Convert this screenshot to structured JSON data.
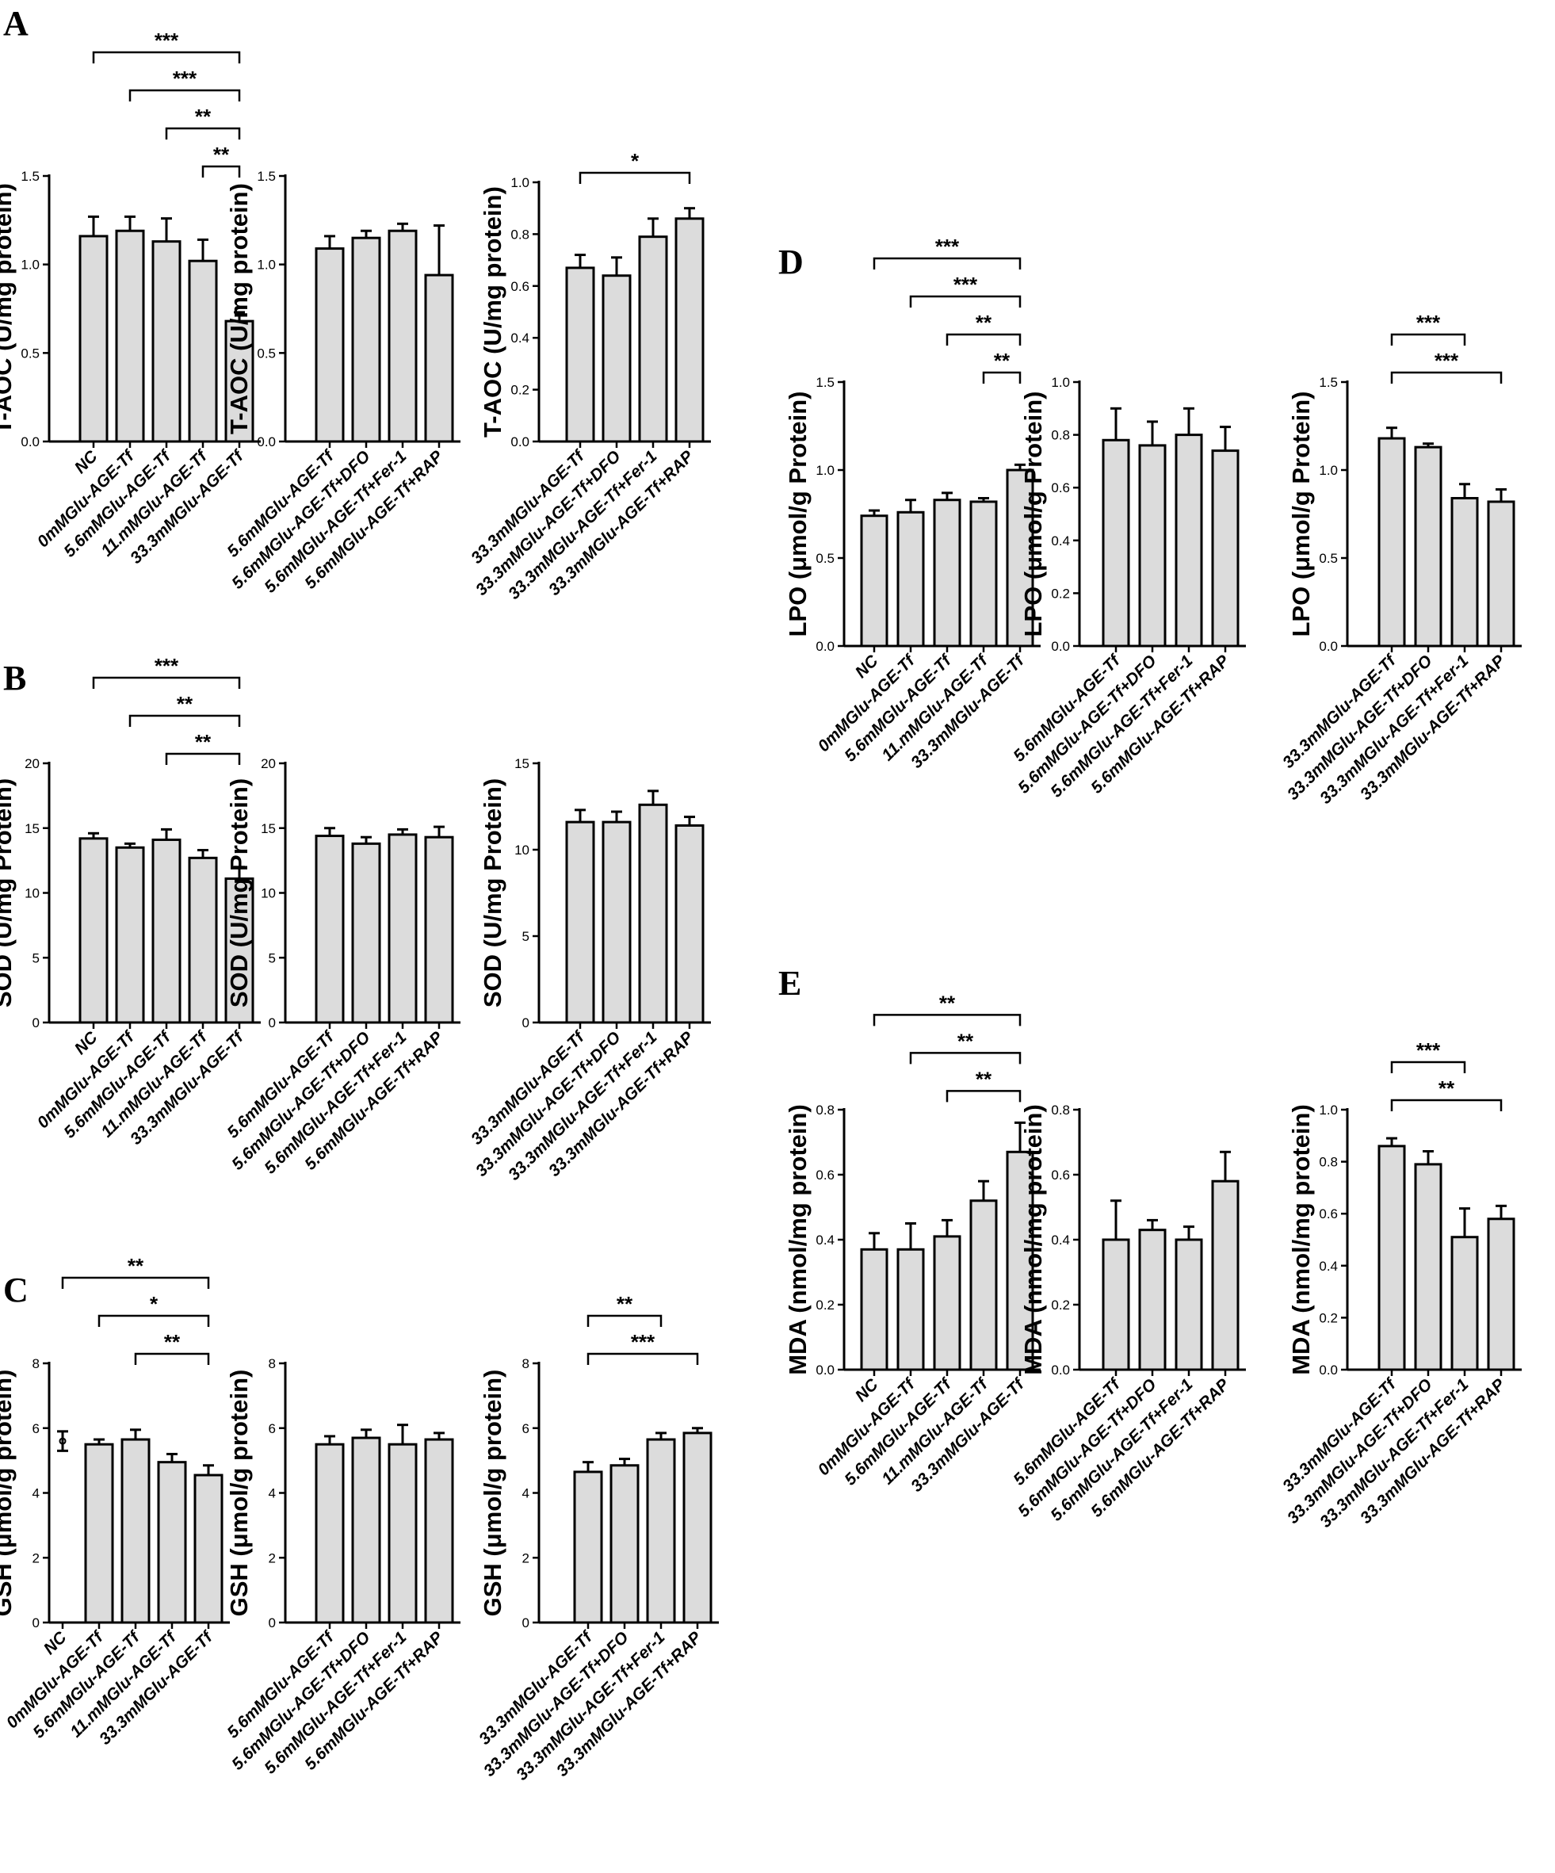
{
  "panel_labels": [
    "A",
    "B",
    "C",
    "D",
    "E"
  ],
  "chart_data": [
    {
      "panel": "A",
      "type": "bar",
      "ylabel": "T-AOC (U/mg protein)",
      "ylim": [
        0,
        1.5
      ],
      "yticks": [
        "0.0",
        "0.5",
        "1.0",
        "1.5"
      ],
      "categories": [
        "NC",
        "0mMGlu-AGE-Tf",
        "5.6mMGlu-AGE-Tf",
        "11.mMGlu-AGE-Tf",
        "33.3mMGlu-AGE-Tf"
      ],
      "values": [
        1.16,
        1.19,
        1.13,
        1.02,
        0.68
      ],
      "errors": [
        0.11,
        0.08,
        0.13,
        0.12,
        0.05
      ],
      "significance": [
        {
          "from": 0,
          "to": 4,
          "label": "***"
        },
        {
          "from": 1,
          "to": 4,
          "label": "***"
        },
        {
          "from": 2,
          "to": 4,
          "label": "**"
        },
        {
          "from": 3,
          "to": 4,
          "label": "**"
        }
      ]
    },
    {
      "panel": "A",
      "type": "bar",
      "ylabel": "T-AOC (U/mg protein)",
      "ylim": [
        0,
        1.5
      ],
      "yticks": [
        "0.0",
        "0.5",
        "1.0",
        "1.5"
      ],
      "categories": [
        "5.6mMGlu-AGE-Tf",
        "5.6mMGlu-AGE-Tf+DFO",
        "5.6mMGlu-AGE-Tf+Fer-1",
        "5.6mMGlu-AGE-Tf+RAP"
      ],
      "values": [
        1.09,
        1.15,
        1.19,
        0.94
      ],
      "errors": [
        0.07,
        0.04,
        0.04,
        0.28
      ],
      "significance": []
    },
    {
      "panel": "A",
      "type": "bar",
      "ylabel": "T-AOC (U/mg protein)",
      "ylim": [
        0,
        1.0
      ],
      "yticks": [
        "0.0",
        "0.2",
        "0.4",
        "0.6",
        "0.8",
        "1.0"
      ],
      "categories": [
        "33.3mMGlu-AGE-Tf",
        "33.3mMGlu-AGE-Tf+DFO",
        "33.3mMGlu-AGE-Tf+Fer-1",
        "33.3mMGlu-AGE-Tf+RAP"
      ],
      "values": [
        0.67,
        0.64,
        0.79,
        0.86
      ],
      "errors": [
        0.05,
        0.07,
        0.07,
        0.04
      ],
      "significance": [
        {
          "from": 0,
          "to": 3,
          "label": "*"
        }
      ]
    },
    {
      "panel": "B",
      "type": "bar",
      "ylabel": "SOD (U/mg Protein)",
      "ylim": [
        0,
        20
      ],
      "yticks": [
        "0",
        "5",
        "10",
        "15",
        "20"
      ],
      "categories": [
        "NC",
        "0mMGlu-AGE-Tf",
        "5.6mMGlu-AGE-Tf",
        "11.mMGlu-AGE-Tf",
        "33.3mMGlu-AGE-Tf"
      ],
      "values": [
        14.2,
        13.5,
        14.1,
        12.7,
        11.1
      ],
      "errors": [
        0.4,
        0.3,
        0.8,
        0.6,
        0.9
      ],
      "significance": [
        {
          "from": 0,
          "to": 4,
          "label": "***"
        },
        {
          "from": 1,
          "to": 4,
          "label": "**"
        },
        {
          "from": 2,
          "to": 4,
          "label": "**"
        }
      ]
    },
    {
      "panel": "B",
      "type": "bar",
      "ylabel": "SOD (U/mg Protein)",
      "ylim": [
        0,
        20
      ],
      "yticks": [
        "0",
        "5",
        "10",
        "15",
        "20"
      ],
      "categories": [
        "5.6mMGlu-AGE-Tf",
        "5.6mMGlu-AGE-Tf+DFO",
        "5.6mMGlu-AGE-Tf+Fer-1",
        "5.6mMGlu-AGE-Tf+RAP"
      ],
      "values": [
        14.4,
        13.8,
        14.5,
        14.3
      ],
      "errors": [
        0.6,
        0.5,
        0.4,
        0.8
      ],
      "significance": []
    },
    {
      "panel": "B",
      "type": "bar",
      "ylabel": "SOD (U/mg Protein)",
      "ylim": [
        0,
        15
      ],
      "yticks": [
        "0",
        "5",
        "10",
        "15"
      ],
      "categories": [
        "33.3mMGlu-AGE-Tf",
        "33.3mMGlu-AGE-Tf+DFO",
        "33.3mMGlu-AGE-Tf+Fer-1",
        "33.3mMGlu-AGE-Tf+RAP"
      ],
      "values": [
        11.6,
        11.6,
        12.6,
        11.4
      ],
      "errors": [
        0.7,
        0.6,
        0.8,
        0.5
      ],
      "significance": []
    },
    {
      "panel": "C",
      "type": "bar",
      "ylabel": "GSH (μmol/g protein)",
      "ylim": [
        0,
        8
      ],
      "yticks": [
        "0",
        "2",
        "4",
        "6",
        "8"
      ],
      "categories": [
        "NC",
        "0mMGlu-AGE-Tf",
        "5.6mMGlu-AGE-Tf",
        "11.mMGlu-AGE-Tf",
        "33.3mMGlu-AGE-Tf"
      ],
      "values": [
        5.6,
        5.5,
        5.65,
        4.95,
        4.55
      ],
      "errors": [
        0.3,
        0.15,
        0.3,
        0.25,
        0.3
      ],
      "point_only": [
        true,
        false,
        false,
        false,
        false
      ],
      "significance": [
        {
          "from": 0,
          "to": 4,
          "label": "**"
        },
        {
          "from": 1,
          "to": 4,
          "label": "*"
        },
        {
          "from": 2,
          "to": 4,
          "label": "**"
        }
      ]
    },
    {
      "panel": "C",
      "type": "bar",
      "ylabel": "GSH (μmol/g protein)",
      "ylim": [
        0,
        8
      ],
      "yticks": [
        "0",
        "2",
        "4",
        "6",
        "8"
      ],
      "categories": [
        "5.6mMGlu-AGE-Tf",
        "5.6mMGlu-AGE-Tf+DFO",
        "5.6mMGlu-AGE-Tf+Fer-1",
        "5.6mMGlu-AGE-Tf+RAP"
      ],
      "values": [
        5.5,
        5.7,
        5.5,
        5.65
      ],
      "errors": [
        0.25,
        0.25,
        0.6,
        0.2
      ],
      "significance": []
    },
    {
      "panel": "C",
      "type": "bar",
      "ylabel": "GSH (μmol/g protein)",
      "ylim": [
        0,
        8
      ],
      "yticks": [
        "0",
        "2",
        "4",
        "6",
        "8"
      ],
      "categories": [
        "33.3mMGlu-AGE-Tf",
        "33.3mMGlu-AGE-Tf+DFO",
        "33.3mMGlu-AGE-Tf+Fer-1",
        "33.3mMGlu-AGE-Tf+RAP"
      ],
      "values": [
        4.65,
        4.85,
        5.65,
        5.85
      ],
      "errors": [
        0.3,
        0.2,
        0.2,
        0.15
      ],
      "significance": [
        {
          "from": 0,
          "to": 2,
          "label": "**"
        },
        {
          "from": 0,
          "to": 3,
          "label": "***"
        }
      ]
    },
    {
      "panel": "D",
      "type": "bar",
      "ylabel": "LPO (μmol/g Protein)",
      "ylim": [
        0,
        1.5
      ],
      "yticks": [
        "0.0",
        "0.5",
        "1.0",
        "1.5"
      ],
      "categories": [
        "NC",
        "0mMGlu-AGE-Tf",
        "5.6mMGlu-AGE-Tf",
        "11.mMGlu-AGE-Tf",
        "33.3mMGlu-AGE-Tf"
      ],
      "values": [
        0.74,
        0.76,
        0.83,
        0.82,
        1.0
      ],
      "errors": [
        0.03,
        0.07,
        0.04,
        0.02,
        0.03
      ],
      "significance": [
        {
          "from": 0,
          "to": 4,
          "label": "***"
        },
        {
          "from": 1,
          "to": 4,
          "label": "***"
        },
        {
          "from": 2,
          "to": 4,
          "label": "**"
        },
        {
          "from": 3,
          "to": 4,
          "label": "**"
        }
      ]
    },
    {
      "panel": "D",
      "type": "bar",
      "ylabel": "LPO (μmol/g Protein)",
      "ylim": [
        0,
        1.0
      ],
      "yticks": [
        "0.0",
        "0.2",
        "0.4",
        "0.6",
        "0.8",
        "1.0"
      ],
      "categories": [
        "5.6mMGlu-AGE-Tf",
        "5.6mMGlu-AGE-Tf+DFO",
        "5.6mMGlu-AGE-Tf+Fer-1",
        "5.6mMGlu-AGE-Tf+RAP"
      ],
      "values": [
        0.78,
        0.76,
        0.8,
        0.74
      ],
      "errors": [
        0.12,
        0.09,
        0.1,
        0.09
      ],
      "significance": []
    },
    {
      "panel": "D",
      "type": "bar",
      "ylabel": "LPO (μmol/g Protein)",
      "ylim": [
        0,
        1.5
      ],
      "yticks": [
        "0.0",
        "0.5",
        "1.0",
        "1.5"
      ],
      "categories": [
        "33.3mMGlu-AGE-Tf",
        "33.3mMGlu-AGE-Tf+DFO",
        "33.3mMGlu-AGE-Tf+Fer-1",
        "33.3mMGlu-AGE-Tf+RAP"
      ],
      "values": [
        1.18,
        1.13,
        0.84,
        0.82
      ],
      "errors": [
        0.06,
        0.02,
        0.08,
        0.07
      ],
      "significance": [
        {
          "from": 0,
          "to": 2,
          "label": "***"
        },
        {
          "from": 0,
          "to": 3,
          "label": "***"
        }
      ]
    },
    {
      "panel": "E",
      "type": "bar",
      "ylabel": "MDA (nmol/mg protein)",
      "ylim": [
        0,
        0.8
      ],
      "yticks": [
        "0.0",
        "0.2",
        "0.4",
        "0.6",
        "0.8"
      ],
      "categories": [
        "NC",
        "0mMGlu-AGE-Tf",
        "5.6mMGlu-AGE-Tf",
        "11.mMGlu-AGE-Tf",
        "33.3mMGlu-AGE-Tf"
      ],
      "values": [
        0.37,
        0.37,
        0.41,
        0.52,
        0.67
      ],
      "errors": [
        0.05,
        0.08,
        0.05,
        0.06,
        0.09
      ],
      "significance": [
        {
          "from": 0,
          "to": 4,
          "label": "**"
        },
        {
          "from": 1,
          "to": 4,
          "label": "**"
        },
        {
          "from": 2,
          "to": 4,
          "label": "**"
        }
      ]
    },
    {
      "panel": "E",
      "type": "bar",
      "ylabel": "MDA (nmol/mg protein)",
      "ylim": [
        0,
        0.8
      ],
      "yticks": [
        "0.0",
        "0.2",
        "0.4",
        "0.6",
        "0.8"
      ],
      "categories": [
        "5.6mMGlu-AGE-Tf",
        "5.6mMGlu-AGE-Tf+DFO",
        "5.6mMGlu-AGE-Tf+Fer-1",
        "5.6mMGlu-AGE-Tf+RAP"
      ],
      "values": [
        0.4,
        0.43,
        0.4,
        0.58
      ],
      "errors": [
        0.12,
        0.03,
        0.04,
        0.09
      ],
      "significance": []
    },
    {
      "panel": "E",
      "type": "bar",
      "ylabel": "MDA (nmol/mg protein)",
      "ylim": [
        0,
        1.0
      ],
      "yticks": [
        "0.0",
        "0.2",
        "0.4",
        "0.6",
        "0.8",
        "1.0"
      ],
      "categories": [
        "33.3mMGlu-AGE-Tf",
        "33.3mMGlu-AGE-Tf+DFO",
        "33.3mMGlu-AGE-Tf+Fer-1",
        "33.3mMGlu-AGE-Tf+RAP"
      ],
      "values": [
        0.86,
        0.79,
        0.51,
        0.58
      ],
      "errors": [
        0.03,
        0.05,
        0.11,
        0.05
      ],
      "significance": [
        {
          "from": 0,
          "to": 2,
          "label": "***"
        },
        {
          "from": 0,
          "to": 3,
          "label": "**"
        }
      ]
    }
  ]
}
